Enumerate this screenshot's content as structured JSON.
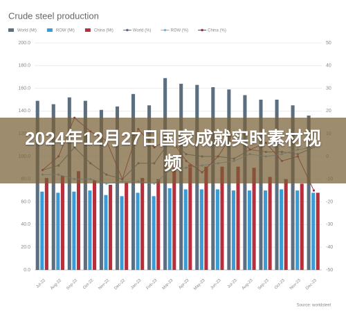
{
  "chart_data": {
    "type": "bar_line",
    "title": "Crude steel production",
    "categories": [
      "Jul-22",
      "Aug-22",
      "Sep-22",
      "Oct-22",
      "Nov-22",
      "Dec-22",
      "Jan-23",
      "Feb-23",
      "Mar-23",
      "Apr-23",
      "May-23",
      "Jun-23",
      "Jul-23",
      "Aug-23",
      "Sep-23",
      "Oct-23",
      "Nov-23",
      "Dec-23"
    ],
    "series": [
      {
        "name": "World (Mt)",
        "color": "#5b6f80",
        "type": "bar",
        "values": [
          149,
          146,
          152,
          149,
          141,
          144,
          155,
          145,
          169,
          164,
          163,
          161,
          159,
          154,
          150,
          150,
          145,
          136
        ]
      },
      {
        "name": "ROW (Mt)",
        "color": "#3a9bd5",
        "type": "bar",
        "values": [
          69,
          68,
          69,
          70,
          66,
          65,
          68,
          65,
          72,
          71,
          71,
          71,
          70,
          70,
          70,
          71,
          70,
          68
        ]
      },
      {
        "name": "China (Mt)",
        "color": "#b5303c",
        "type": "bar",
        "values": [
          81,
          83,
          87,
          79,
          75,
          77,
          81,
          80,
          95,
          93,
          91,
          91,
          91,
          90,
          82,
          80,
          76,
          68
        ]
      },
      {
        "name": "World (%)",
        "color": "#5b6f80",
        "type": "line",
        "axis": "y2",
        "values": [
          -6,
          -4,
          4,
          -3,
          -8,
          -10,
          -3,
          -3,
          7,
          1,
          0,
          0,
          -1,
          3,
          2,
          2,
          1,
          4
        ]
      },
      {
        "name": "ROW (%)",
        "color": "#6fb8e3",
        "type": "line",
        "axis": "y2",
        "values": [
          -8,
          -8,
          -10,
          -10,
          -12,
          -11,
          -11,
          -12,
          -6,
          -5,
          -4,
          -3,
          -2,
          1,
          0,
          1,
          3,
          4
        ]
      },
      {
        "name": "China (%)",
        "color": "#9b2f3e",
        "type": "line",
        "axis": "y2",
        "values": [
          -6,
          0,
          17,
          11,
          7,
          -10,
          12,
          4,
          8,
          -2,
          -7,
          0,
          11,
          3,
          6,
          -2,
          0,
          -15
        ]
      }
    ],
    "ylim": [
      0,
      200
    ],
    "yticks": [
      {
        "value": 0,
        "label": "0.0"
      },
      {
        "value": 20,
        "label": "20.0"
      },
      {
        "value": 40,
        "label": "40.0"
      },
      {
        "value": 60,
        "label": "60.0"
      },
      {
        "value": 80,
        "label": "80.0"
      },
      {
        "value": 100,
        "label": "100.0"
      },
      {
        "value": 120,
        "label": "120.0"
      },
      {
        "value": 140,
        "label": "140.0"
      },
      {
        "value": 160,
        "label": "160.0"
      },
      {
        "value": 180,
        "label": "180.0"
      },
      {
        "value": 200,
        "label": "200.0"
      }
    ],
    "y2lim": [
      -50,
      50
    ],
    "y2ticks": [
      -50,
      -40,
      -30,
      -20,
      -10,
      0,
      10,
      20,
      30,
      40,
      50
    ],
    "grid": true,
    "source": "Source: worldsteel"
  },
  "overlay": {
    "headline": "2024年12月27日国家成就实时素材视频"
  }
}
